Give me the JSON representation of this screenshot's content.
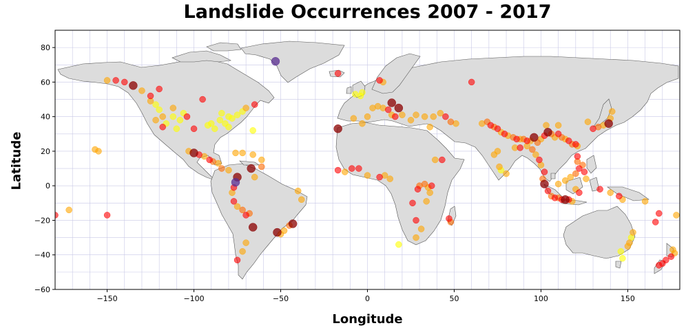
{
  "chart_data": {
    "type": "scatter",
    "title": "Landslide Occurrences 2007 - 2017",
    "xlabel": "Longitude",
    "ylabel": "Latitude",
    "xlim": [
      -180,
      180
    ],
    "ylim": [
      -60,
      90
    ],
    "x_ticks": [
      -150,
      -100,
      -50,
      0,
      50,
      100,
      150
    ],
    "y_ticks": [
      -60,
      -40,
      -20,
      0,
      20,
      40,
      60,
      80
    ],
    "grid": true,
    "basemap": "world coastlines",
    "colors": {
      "land": "#dcdcdc",
      "grid": "#c8c8e6",
      "yellow": "#ffff00",
      "orange": "#ffa500",
      "darkorange": "#ff6a00",
      "red": "#ff0000",
      "darkred": "#8b0000",
      "purple": "#5a2d91"
    },
    "points": [
      {
        "x": -122,
        "y": 47,
        "c": "yellow"
      },
      {
        "x": -120,
        "y": 44,
        "c": "yellow"
      },
      {
        "x": -118,
        "y": 40,
        "c": "orange"
      },
      {
        "x": -122,
        "y": 38,
        "c": "orange"
      },
      {
        "x": -118,
        "y": 34,
        "c": "red"
      },
      {
        "x": -116,
        "y": 36,
        "c": "yellow"
      },
      {
        "x": -112,
        "y": 40,
        "c": "yellow"
      },
      {
        "x": -108,
        "y": 38,
        "c": "yellow"
      },
      {
        "x": -125,
        "y": 49,
        "c": "orange"
      },
      {
        "x": -130,
        "y": 55,
        "c": "orange"
      },
      {
        "x": -135,
        "y": 58,
        "c": "darkred"
      },
      {
        "x": -145,
        "y": 61,
        "c": "red"
      },
      {
        "x": -150,
        "y": 61,
        "c": "orange"
      },
      {
        "x": -140,
        "y": 60,
        "c": "red"
      },
      {
        "x": -120,
        "y": 56,
        "c": "red"
      },
      {
        "x": -125,
        "y": 52,
        "c": "red"
      },
      {
        "x": -112,
        "y": 45,
        "c": "orange"
      },
      {
        "x": -106,
        "y": 42,
        "c": "yellow"
      },
      {
        "x": -104,
        "y": 40,
        "c": "red"
      },
      {
        "x": -110,
        "y": 33,
        "c": "yellow"
      },
      {
        "x": -100,
        "y": 33,
        "c": "red"
      },
      {
        "x": -95,
        "y": 50,
        "c": "red"
      },
      {
        "x": -90,
        "y": 36,
        "c": "yellow"
      },
      {
        "x": -85,
        "y": 38,
        "c": "yellow"
      },
      {
        "x": -82,
        "y": 36,
        "c": "yellow"
      },
      {
        "x": -80,
        "y": 40,
        "c": "yellow"
      },
      {
        "x": -78,
        "y": 39,
        "c": "yellow"
      },
      {
        "x": -75,
        "y": 41,
        "c": "yellow"
      },
      {
        "x": -72,
        "y": 43,
        "c": "yellow"
      },
      {
        "x": -70,
        "y": 45,
        "c": "orange"
      },
      {
        "x": -65,
        "y": 47,
        "c": "red"
      },
      {
        "x": -84,
        "y": 42,
        "c": "yellow"
      },
      {
        "x": -88,
        "y": 33,
        "c": "yellow"
      },
      {
        "x": -92,
        "y": 35,
        "c": "yellow"
      },
      {
        "x": -80,
        "y": 34,
        "c": "yellow"
      },
      {
        "x": -66,
        "y": 32,
        "c": "yellow"
      },
      {
        "x": -103,
        "y": 20,
        "c": "orange"
      },
      {
        "x": -100,
        "y": 19,
        "c": "darkred"
      },
      {
        "x": -97,
        "y": 18,
        "c": "red"
      },
      {
        "x": -94,
        "y": 17,
        "c": "orange"
      },
      {
        "x": -91,
        "y": 15,
        "c": "red"
      },
      {
        "x": -89,
        "y": 14,
        "c": "darkorange"
      },
      {
        "x": -86,
        "y": 13,
        "c": "orange"
      },
      {
        "x": -84,
        "y": 10,
        "c": "darkorange"
      },
      {
        "x": -80,
        "y": 9,
        "c": "orange"
      },
      {
        "x": -76,
        "y": 19,
        "c": "orange"
      },
      {
        "x": -72,
        "y": 19,
        "c": "orange"
      },
      {
        "x": -66,
        "y": 18,
        "c": "orange"
      },
      {
        "x": -61,
        "y": 15,
        "c": "orange"
      },
      {
        "x": -61,
        "y": 11,
        "c": "darkorange"
      },
      {
        "x": -75,
        "y": 5,
        "c": "darkred"
      },
      {
        "x": -76,
        "y": 2,
        "c": "purple"
      },
      {
        "x": -77,
        "y": -1,
        "c": "red"
      },
      {
        "x": -78,
        "y": -4,
        "c": "orange"
      },
      {
        "x": -77,
        "y": -9,
        "c": "red"
      },
      {
        "x": -75,
        "y": -12,
        "c": "orange"
      },
      {
        "x": -72,
        "y": -14,
        "c": "darkorange"
      },
      {
        "x": -70,
        "y": -17,
        "c": "red"
      },
      {
        "x": -68,
        "y": -16,
        "c": "darkorange"
      },
      {
        "x": -66,
        "y": -24,
        "c": "darkred"
      },
      {
        "x": -70,
        "y": -33,
        "c": "orange"
      },
      {
        "x": -72,
        "y": -38,
        "c": "orange"
      },
      {
        "x": -75,
        "y": -43,
        "c": "red"
      },
      {
        "x": -67,
        "y": 10,
        "c": "darkred"
      },
      {
        "x": -65,
        "y": 5,
        "c": "orange"
      },
      {
        "x": -43,
        "y": -22,
        "c": "darkred"
      },
      {
        "x": -45,
        "y": -23,
        "c": "darkorange"
      },
      {
        "x": -48,
        "y": -26,
        "c": "orange"
      },
      {
        "x": -50,
        "y": -28,
        "c": "orange"
      },
      {
        "x": -38,
        "y": -8,
        "c": "orange"
      },
      {
        "x": -40,
        "y": -3,
        "c": "orange"
      },
      {
        "x": -52,
        "y": -27,
        "c": "darkred"
      },
      {
        "x": -53,
        "y": 72,
        "c": "purple"
      },
      {
        "x": -17,
        "y": 65,
        "c": "red"
      },
      {
        "x": -17,
        "y": 33,
        "c": "darkred"
      },
      {
        "x": -155,
        "y": 20,
        "c": "orange"
      },
      {
        "x": -157,
        "y": 21,
        "c": "orange"
      },
      {
        "x": -150,
        "y": -17,
        "c": "red"
      },
      {
        "x": -172,
        "y": -14,
        "c": "orange"
      },
      {
        "x": -180,
        "y": -17,
        "c": "red"
      },
      {
        "x": -3,
        "y": 54,
        "c": "yellow"
      },
      {
        "x": -4,
        "y": 52,
        "c": "yellow"
      },
      {
        "x": -7,
        "y": 53,
        "c": "yellow"
      },
      {
        "x": 7,
        "y": 61,
        "c": "red"
      },
      {
        "x": 9,
        "y": 60,
        "c": "orange"
      },
      {
        "x": 6,
        "y": 46,
        "c": "orange"
      },
      {
        "x": 9,
        "y": 45,
        "c": "orange"
      },
      {
        "x": 12,
        "y": 44,
        "c": "red"
      },
      {
        "x": 14,
        "y": 41,
        "c": "orange"
      },
      {
        "x": 16,
        "y": 40,
        "c": "red"
      },
      {
        "x": 14,
        "y": 48,
        "c": "darkred"
      },
      {
        "x": 18,
        "y": 45,
        "c": "darkred"
      },
      {
        "x": 20,
        "y": 41,
        "c": "orange"
      },
      {
        "x": 25,
        "y": 38,
        "c": "orange"
      },
      {
        "x": 28,
        "y": 41,
        "c": "orange"
      },
      {
        "x": 33,
        "y": 40,
        "c": "orange"
      },
      {
        "x": 38,
        "y": 40,
        "c": "orange"
      },
      {
        "x": 42,
        "y": 42,
        "c": "orange"
      },
      {
        "x": 45,
        "y": 40,
        "c": "red"
      },
      {
        "x": 48,
        "y": 37,
        "c": "darkorange"
      },
      {
        "x": 51,
        "y": 36,
        "c": "orange"
      },
      {
        "x": 36,
        "y": 34,
        "c": "orange"
      },
      {
        "x": 60,
        "y": 60,
        "c": "red"
      },
      {
        "x": -8,
        "y": 39,
        "c": "orange"
      },
      {
        "x": -3,
        "y": 36,
        "c": "orange"
      },
      {
        "x": 0,
        "y": 40,
        "c": "orange"
      },
      {
        "x": 3,
        "y": 45,
        "c": "orange"
      },
      {
        "x": -17,
        "y": 9,
        "c": "red"
      },
      {
        "x": -13,
        "y": 8,
        "c": "orange"
      },
      {
        "x": -9,
        "y": 10,
        "c": "red"
      },
      {
        "x": -5,
        "y": 10,
        "c": "red"
      },
      {
        "x": 0,
        "y": 6,
        "c": "orange"
      },
      {
        "x": 7,
        "y": 5,
        "c": "red"
      },
      {
        "x": 10,
        "y": 6,
        "c": "orange"
      },
      {
        "x": 13,
        "y": 4,
        "c": "orange"
      },
      {
        "x": 29,
        "y": -2,
        "c": "red"
      },
      {
        "x": 30,
        "y": 0,
        "c": "darkorange"
      },
      {
        "x": 33,
        "y": 1,
        "c": "darkorange"
      },
      {
        "x": 35,
        "y": -1,
        "c": "orange"
      },
      {
        "x": 37,
        "y": 0,
        "c": "red"
      },
      {
        "x": 36,
        "y": -4,
        "c": "orange"
      },
      {
        "x": 34,
        "y": -9,
        "c": "orange"
      },
      {
        "x": 26,
        "y": -10,
        "c": "red"
      },
      {
        "x": 28,
        "y": -20,
        "c": "red"
      },
      {
        "x": 31,
        "y": -25,
        "c": "orange"
      },
      {
        "x": 28,
        "y": -30,
        "c": "orange"
      },
      {
        "x": 18,
        "y": -34,
        "c": "yellow"
      },
      {
        "x": 39,
        "y": 15,
        "c": "orange"
      },
      {
        "x": 43,
        "y": 15,
        "c": "red"
      },
      {
        "x": 47,
        "y": -19,
        "c": "red"
      },
      {
        "x": 48,
        "y": -21,
        "c": "darkorange"
      },
      {
        "x": 66,
        "y": 36,
        "c": "orange"
      },
      {
        "x": 69,
        "y": 37,
        "c": "darkorange"
      },
      {
        "x": 71,
        "y": 35,
        "c": "red"
      },
      {
        "x": 73,
        "y": 34,
        "c": "darkorange"
      },
      {
        "x": 75,
        "y": 33,
        "c": "red"
      },
      {
        "x": 77,
        "y": 31,
        "c": "orange"
      },
      {
        "x": 79,
        "y": 30,
        "c": "red"
      },
      {
        "x": 81,
        "y": 29,
        "c": "orange"
      },
      {
        "x": 84,
        "y": 28,
        "c": "darkorange"
      },
      {
        "x": 86,
        "y": 27,
        "c": "red"
      },
      {
        "x": 88,
        "y": 27,
        "c": "orange"
      },
      {
        "x": 90,
        "y": 27,
        "c": "darkorange"
      },
      {
        "x": 92,
        "y": 26,
        "c": "red"
      },
      {
        "x": 94,
        "y": 26,
        "c": "orange"
      },
      {
        "x": 96,
        "y": 28,
        "c": "darkred"
      },
      {
        "x": 98,
        "y": 25,
        "c": "darkorange"
      },
      {
        "x": 100,
        "y": 27,
        "c": "orange"
      },
      {
        "x": 102,
        "y": 29,
        "c": "red"
      },
      {
        "x": 104,
        "y": 31,
        "c": "darkred"
      },
      {
        "x": 106,
        "y": 30,
        "c": "darkorange"
      },
      {
        "x": 108,
        "y": 28,
        "c": "orange"
      },
      {
        "x": 110,
        "y": 30,
        "c": "red"
      },
      {
        "x": 112,
        "y": 28,
        "c": "darkorange"
      },
      {
        "x": 114,
        "y": 27,
        "c": "orange"
      },
      {
        "x": 116,
        "y": 26,
        "c": "red"
      },
      {
        "x": 118,
        "y": 24,
        "c": "darkorange"
      },
      {
        "x": 120,
        "y": 24,
        "c": "red"
      },
      {
        "x": 121,
        "y": 23,
        "c": "orange"
      },
      {
        "x": 110,
        "y": 35,
        "c": "orange"
      },
      {
        "x": 103,
        "y": 35,
        "c": "orange"
      },
      {
        "x": 75,
        "y": 20,
        "c": "orange"
      },
      {
        "x": 73,
        "y": 18,
        "c": "orange"
      },
      {
        "x": 76,
        "y": 11,
        "c": "orange"
      },
      {
        "x": 77,
        "y": 9,
        "c": "yellow"
      },
      {
        "x": 80,
        "y": 7,
        "c": "orange"
      },
      {
        "x": 85,
        "y": 22,
        "c": "orange"
      },
      {
        "x": 88,
        "y": 22,
        "c": "red"
      },
      {
        "x": 92,
        "y": 23,
        "c": "orange"
      },
      {
        "x": 95,
        "y": 21,
        "c": "darkorange"
      },
      {
        "x": 97,
        "y": 18,
        "c": "orange"
      },
      {
        "x": 99,
        "y": 15,
        "c": "red"
      },
      {
        "x": 100,
        "y": 12,
        "c": "orange"
      },
      {
        "x": 102,
        "y": 8,
        "c": "red"
      },
      {
        "x": 101,
        "y": 4,
        "c": "darkorange"
      },
      {
        "x": 102,
        "y": 1,
        "c": "darkred"
      },
      {
        "x": 104,
        "y": -3,
        "c": "red"
      },
      {
        "x": 106,
        "y": -6,
        "c": "darkorange"
      },
      {
        "x": 108,
        "y": -7,
        "c": "red"
      },
      {
        "x": 110,
        "y": -7,
        "c": "darkorange"
      },
      {
        "x": 112,
        "y": -8,
        "c": "red"
      },
      {
        "x": 114,
        "y": -8,
        "c": "darkred"
      },
      {
        "x": 116,
        "y": -8,
        "c": "red"
      },
      {
        "x": 118,
        "y": -9,
        "c": "orange"
      },
      {
        "x": 110,
        "y": 1,
        "c": "orange"
      },
      {
        "x": 114,
        "y": 3,
        "c": "orange"
      },
      {
        "x": 117,
        "y": 5,
        "c": "orange"
      },
      {
        "x": 120,
        "y": 7,
        "c": "darkorange"
      },
      {
        "x": 122,
        "y": 10,
        "c": "red"
      },
      {
        "x": 121,
        "y": 14,
        "c": "darkorange"
      },
      {
        "x": 121,
        "y": 17,
        "c": "red"
      },
      {
        "x": 124,
        "y": 12,
        "c": "darkorange"
      },
      {
        "x": 125,
        "y": 8,
        "c": "red"
      },
      {
        "x": 126,
        "y": 4,
        "c": "orange"
      },
      {
        "x": 120,
        "y": -2,
        "c": "orange"
      },
      {
        "x": 122,
        "y": -4,
        "c": "red"
      },
      {
        "x": 130,
        "y": 33,
        "c": "red"
      },
      {
        "x": 133,
        "y": 34,
        "c": "darkorange"
      },
      {
        "x": 136,
        "y": 35,
        "c": "orange"
      },
      {
        "x": 139,
        "y": 36,
        "c": "darkred"
      },
      {
        "x": 140,
        "y": 39,
        "c": "orange"
      },
      {
        "x": 141,
        "y": 43,
        "c": "orange"
      },
      {
        "x": 127,
        "y": 37,
        "c": "orange"
      },
      {
        "x": 134,
        "y": -2,
        "c": "red"
      },
      {
        "x": 140,
        "y": -4,
        "c": "orange"
      },
      {
        "x": 145,
        "y": -6,
        "c": "red"
      },
      {
        "x": 147,
        "y": -8,
        "c": "orange"
      },
      {
        "x": 153,
        "y": -27,
        "c": "orange"
      },
      {
        "x": 152,
        "y": -30,
        "c": "yellow"
      },
      {
        "x": 151,
        "y": -33,
        "c": "orange"
      },
      {
        "x": 150,
        "y": -35,
        "c": "orange"
      },
      {
        "x": 146,
        "y": -38,
        "c": "yellow"
      },
      {
        "x": 147,
        "y": -42,
        "c": "yellow"
      },
      {
        "x": 176,
        "y": -37,
        "c": "orange"
      },
      {
        "x": 177,
        "y": -39,
        "c": "orange"
      },
      {
        "x": 175,
        "y": -41,
        "c": "red"
      },
      {
        "x": 172,
        "y": -43,
        "c": "red"
      },
      {
        "x": 170,
        "y": -45,
        "c": "red"
      },
      {
        "x": 168,
        "y": -46,
        "c": "red"
      },
      {
        "x": 166,
        "y": -21,
        "c": "red"
      },
      {
        "x": 168,
        "y": -16,
        "c": "red"
      },
      {
        "x": 178,
        "y": -17,
        "c": "orange"
      },
      {
        "x": 160,
        "y": -9,
        "c": "orange"
      }
    ]
  }
}
